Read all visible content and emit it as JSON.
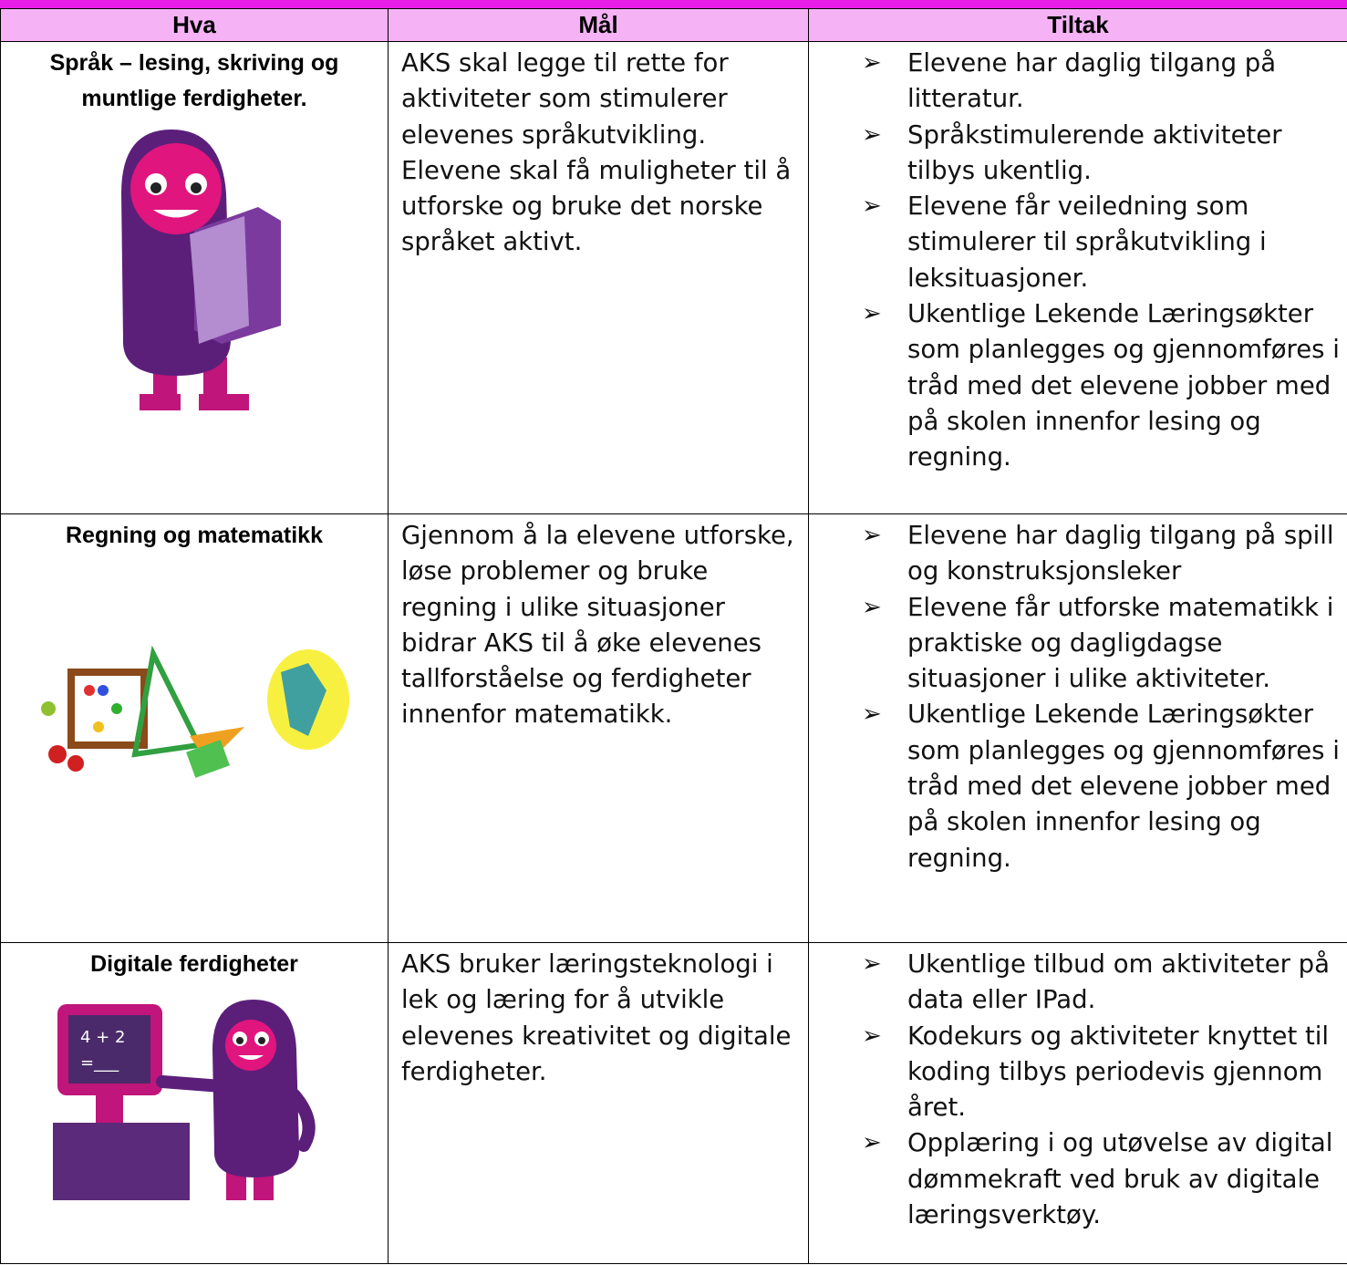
{
  "table": {
    "headers": [
      "Hva",
      "Mål",
      "Tiltak"
    ],
    "rows": [
      {
        "hva": "Språk – lesing, skriving og muntlige ferdigheter.",
        "mal": "AKS skal legge til rette for aktiviteter som stimulerer elevenes språkutvikling. Elevene skal få muligheter til å utforske og bruke det norske språket aktivt.",
        "tiltak": [
          "Elevene har daglig tilgang på litteratur.",
          "Språkstimulerende aktiviteter tilbys ukentlig.",
          "Elevene får veiledning som stimulerer til språkutvikling i leksituasjoner.",
          "Ukentlige Lekende Læringsøkter som planlegges og gjennomføres i tråd med det elevene jobber med på skolen innenfor lesing og regning."
        ]
      },
      {
        "hva": "Regning og matematikk",
        "mal": "Gjennom å la elevene utforske, løse problemer og bruke regning i ulike situasjoner bidrar AKS til å øke elevenes tallforståelse og ferdigheter innenfor matematikk.",
        "tiltak": [
          "Elevene har daglig tilgang på spill og konstruksjonsleker",
          "Elevene får utforske matematikk i praktiske og dagligdagse situasjoner i ulike aktiviteter.",
          "Ukentlige Lekende Læringsøkter som planlegges og gjennomføres i tråd med det elevene jobber med på skolen innenfor lesing og regning."
        ]
      },
      {
        "hva": "Digitale ferdigheter",
        "mal": "AKS bruker læringsteknologi i lek og læring for å utvikle elevenes kreativitet og digitale ferdigheter.",
        "tiltak": [
          "Ukentlige tilbud om aktiviteter på data eller IPad.",
          "Kodekurs og aktiviteter knyttet til koding tilbys periodevis gjennom året.",
          "Opplæring i og utøvelse av digital dømmekraft ved bruk av digitale læringsverktøy."
        ]
      }
    ]
  },
  "images": {
    "computer_screen": [
      "4 + 2",
      "=___"
    ]
  }
}
